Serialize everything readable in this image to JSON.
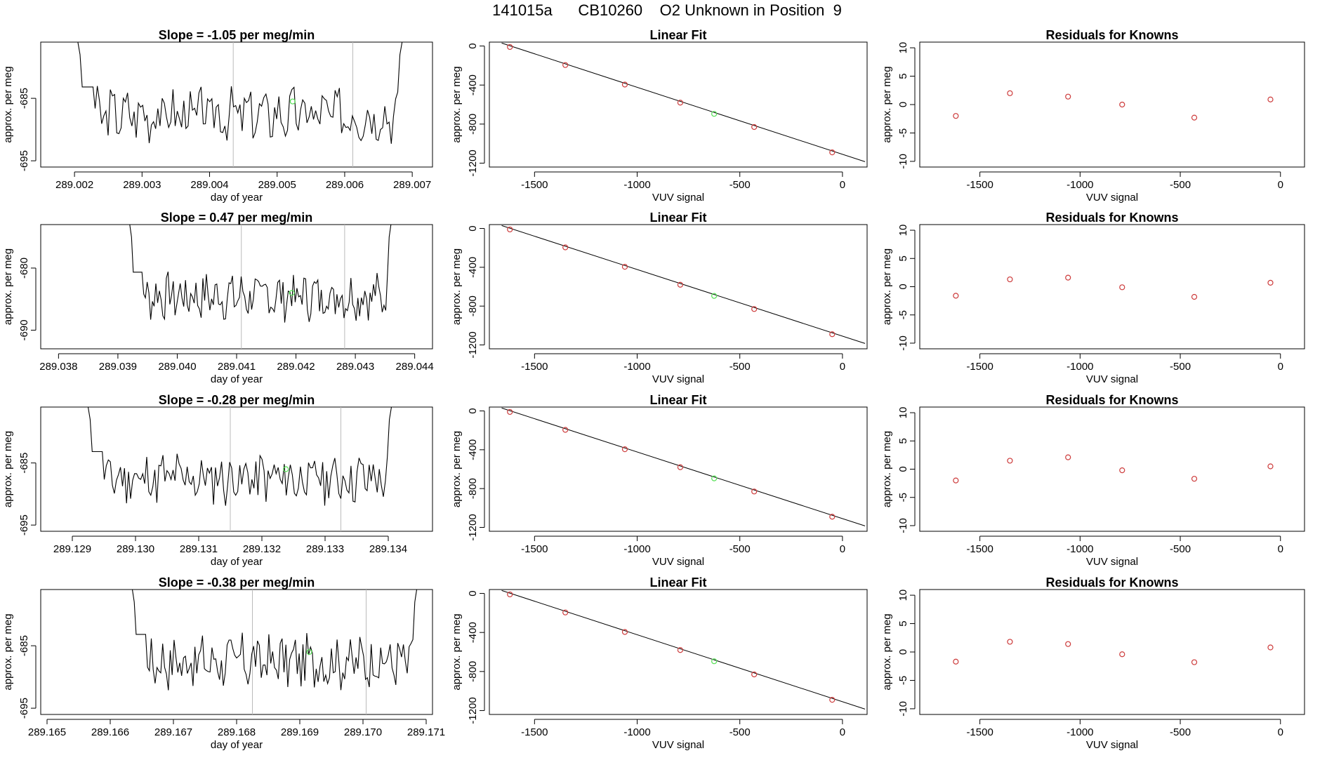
{
  "page": {
    "title": "141015a      CB10260    O2 Unknown in Position  9"
  },
  "colors": {
    "trace": "#000000",
    "fit_line": "#000000",
    "known_point": "#cd3b3b",
    "unknown_point": "#55e055",
    "cursor_line": "#bbbbbb",
    "axis": "#000000"
  },
  "chart_data": [
    {
      "type": "line",
      "panel": "trace-1",
      "title_prefix": "Slope =",
      "title_value": "-1.05",
      "title_suffix": "per meg/min",
      "xlabel": "day of year",
      "ylabel": "approx. per meg",
      "xlim": [
        289.0015,
        289.0073
      ],
      "ylim": [
        -696,
        -676
      ],
      "xticks": [
        "289.002",
        "289.003",
        "289.004",
        "289.005",
        "289.006",
        "289.007"
      ],
      "xtick_values": [
        289.002,
        289.003,
        289.004,
        289.005,
        289.006,
        289.007
      ],
      "yticks": [
        "-685",
        "-695"
      ],
      "ytick_values": [
        -685,
        -695
      ],
      "trace_start": 289.00205,
      "trace_end": 289.00685,
      "trace_base": -687.5,
      "trace_amp": 3.6,
      "trace_seed": 3,
      "vlines": [
        289.00435,
        289.00612
      ],
      "unknown_point": {
        "x": 289.00523,
        "y": -685.5
      }
    },
    {
      "type": "scatter",
      "panel": "fit-1",
      "title": "Linear Fit",
      "xlabel": "VUV signal",
      "ylabel": "approx. per meg",
      "xlim": [
        -1720,
        120
      ],
      "ylim": [
        -1240,
        40
      ],
      "xticks": [
        "-1500",
        "-1000",
        "-500",
        "0"
      ],
      "xtick_values": [
        -1500,
        -1000,
        -500,
        0
      ],
      "yticks": [
        "0",
        "-400",
        "-800",
        "-1200"
      ],
      "ytick_values": [
        0,
        -400,
        -800,
        -1200
      ],
      "line": {
        "x": [
          -1660,
          110
        ],
        "y": [
          30,
          -1185
        ]
      },
      "knowns": {
        "x": [
          -1620,
          -1350,
          -1060,
          -790,
          -430,
          -50
        ],
        "y": [
          -10,
          -195,
          -395,
          -580,
          -830,
          -1090
        ]
      },
      "unknown": {
        "x": -625,
        "y": -695
      }
    },
    {
      "type": "scatter",
      "panel": "resid-1",
      "title": "Residuals for Knowns",
      "xlabel": "VUV signal",
      "ylabel": "approx. per meg",
      "xlim": [
        -1800,
        120
      ],
      "ylim": [
        -11,
        11
      ],
      "xticks": [
        "-1500",
        "-1000",
        "-500",
        "0"
      ],
      "xtick_values": [
        -1500,
        -1000,
        -500,
        0
      ],
      "yticks": [
        "10",
        "5",
        "0",
        "-5",
        "-10"
      ],
      "ytick_values": [
        10,
        5,
        0,
        -5,
        -10
      ],
      "x": [
        -1620,
        -1350,
        -1060,
        -790,
        -430,
        -50
      ],
      "y": [
        -2.0,
        2.0,
        1.4,
        0.0,
        -2.3,
        0.9
      ]
    },
    {
      "type": "line",
      "panel": "trace-2",
      "title_prefix": "Slope =",
      "title_value": "0.47",
      "title_suffix": "per meg/min",
      "xlabel": "day of year",
      "ylabel": "approx. per meg",
      "xlim": [
        289.0377,
        289.0443
      ],
      "ylim": [
        -693,
        -673
      ],
      "xticks": [
        "289.038",
        "289.039",
        "289.040",
        "289.041",
        "289.042",
        "289.043",
        "289.044"
      ],
      "xtick_values": [
        289.038,
        289.039,
        289.04,
        289.041,
        289.042,
        289.043,
        289.044
      ],
      "yticks": [
        "-680",
        "-690"
      ],
      "ytick_values": [
        -680,
        -690
      ],
      "trace_start": 289.0392,
      "trace_end": 289.0436,
      "trace_base": -684.5,
      "trace_amp": 3.2,
      "trace_seed": 7,
      "vlines": [
        289.04108,
        289.04282
      ],
      "unknown_point": {
        "x": 289.04193,
        "y": -684.0
      }
    },
    {
      "type": "scatter",
      "panel": "fit-2",
      "title": "Linear Fit",
      "xlabel": "VUV signal",
      "ylabel": "approx. per meg",
      "xlim": [
        -1720,
        120
      ],
      "ylim": [
        -1240,
        40
      ],
      "xticks": [
        "-1500",
        "-1000",
        "-500",
        "0"
      ],
      "xtick_values": [
        -1500,
        -1000,
        -500,
        0
      ],
      "yticks": [
        "0",
        "-400",
        "-800",
        "-1200"
      ],
      "ytick_values": [
        0,
        -400,
        -800,
        -1200
      ],
      "line": {
        "x": [
          -1660,
          110
        ],
        "y": [
          30,
          -1185
        ]
      },
      "knowns": {
        "x": [
          -1620,
          -1350,
          -1060,
          -790,
          -430,
          -50
        ],
        "y": [
          -10,
          -195,
          -395,
          -580,
          -830,
          -1090
        ]
      },
      "unknown": {
        "x": -625,
        "y": -695
      }
    },
    {
      "type": "scatter",
      "panel": "resid-2",
      "title": "Residuals for Knowns",
      "xlabel": "VUV signal",
      "ylabel": "approx. per meg",
      "xlim": [
        -1800,
        120
      ],
      "ylim": [
        -11,
        11
      ],
      "xticks": [
        "-1500",
        "-1000",
        "-500",
        "0"
      ],
      "xtick_values": [
        -1500,
        -1000,
        -500,
        0
      ],
      "yticks": [
        "10",
        "5",
        "0",
        "-5",
        "-10"
      ],
      "ytick_values": [
        10,
        5,
        0,
        -5,
        -10
      ],
      "x": [
        -1620,
        -1350,
        -1060,
        -790,
        -430,
        -50
      ],
      "y": [
        -1.6,
        1.3,
        1.6,
        -0.1,
        -1.8,
        0.7
      ]
    },
    {
      "type": "line",
      "panel": "trace-3",
      "title_prefix": "Slope =",
      "title_value": "-0.28",
      "title_suffix": "per meg/min",
      "xlabel": "day of year",
      "ylabel": "approx. per meg",
      "xlim": [
        289.1285,
        289.1347
      ],
      "ylim": [
        -696,
        -676
      ],
      "xticks": [
        "289.129",
        "289.130",
        "289.131",
        "289.132",
        "289.133",
        "289.134"
      ],
      "xtick_values": [
        289.129,
        289.13,
        289.131,
        289.132,
        289.133,
        289.134
      ],
      "yticks": [
        "-685",
        "-695"
      ],
      "ytick_values": [
        -685,
        -695
      ],
      "trace_start": 289.12925,
      "trace_end": 289.13405,
      "trace_base": -687.5,
      "trace_amp": 3.6,
      "trace_seed": 11,
      "vlines": [
        289.1315,
        289.13325
      ],
      "unknown_point": {
        "x": 289.13238,
        "y": -686.0
      }
    },
    {
      "type": "scatter",
      "panel": "fit-3",
      "title": "Linear Fit",
      "xlabel": "VUV signal",
      "ylabel": "approx. per meg",
      "xlim": [
        -1720,
        120
      ],
      "ylim": [
        -1240,
        40
      ],
      "xticks": [
        "-1500",
        "-1000",
        "-500",
        "0"
      ],
      "xtick_values": [
        -1500,
        -1000,
        -500,
        0
      ],
      "yticks": [
        "0",
        "-400",
        "-800",
        "-1200"
      ],
      "ytick_values": [
        0,
        -400,
        -800,
        -1200
      ],
      "line": {
        "x": [
          -1660,
          110
        ],
        "y": [
          30,
          -1185
        ]
      },
      "knowns": {
        "x": [
          -1620,
          -1350,
          -1060,
          -790,
          -430,
          -50
        ],
        "y": [
          -10,
          -195,
          -395,
          -580,
          -830,
          -1090
        ]
      },
      "unknown": {
        "x": -625,
        "y": -695
      }
    },
    {
      "type": "scatter",
      "panel": "resid-3",
      "title": "Residuals for Knowns",
      "xlabel": "VUV signal",
      "ylabel": "approx. per meg",
      "xlim": [
        -1800,
        120
      ],
      "ylim": [
        -11,
        11
      ],
      "xticks": [
        "-1500",
        "-1000",
        "-500",
        "0"
      ],
      "xtick_values": [
        -1500,
        -1000,
        -500,
        0
      ],
      "yticks": [
        "10",
        "5",
        "0",
        "-5",
        "-10"
      ],
      "ytick_values": [
        10,
        5,
        0,
        -5,
        -10
      ],
      "x": [
        -1620,
        -1350,
        -1060,
        -790,
        -430,
        -50
      ],
      "y": [
        -2.0,
        1.5,
        2.1,
        -0.2,
        -1.7,
        0.5
      ]
    },
    {
      "type": "line",
      "panel": "trace-4",
      "title_prefix": "Slope =",
      "title_value": "-0.38",
      "title_suffix": "per meg/min",
      "xlabel": "day of year",
      "ylabel": "approx. per meg",
      "xlim": [
        289.1649,
        289.1711
      ],
      "ylim": [
        -696,
        -676
      ],
      "xticks": [
        "289.165",
        "289.166",
        "289.167",
        "289.168",
        "289.169",
        "289.170",
        "289.171"
      ],
      "xtick_values": [
        289.165,
        289.166,
        289.167,
        289.168,
        289.169,
        289.17,
        289.171
      ],
      "yticks": [
        "-685",
        "-695"
      ],
      "ytick_values": [
        -685,
        -695
      ],
      "trace_start": 289.16635,
      "trace_end": 289.17085,
      "trace_base": -687.5,
      "trace_amp": 3.6,
      "trace_seed": 17,
      "vlines": [
        289.16825,
        289.17005
      ],
      "unknown_point": {
        "x": 289.16915,
        "y": -686.0
      }
    },
    {
      "type": "scatter",
      "panel": "fit-4",
      "title": "Linear Fit",
      "xlabel": "VUV signal",
      "ylabel": "approx. per meg",
      "xlim": [
        -1720,
        120
      ],
      "ylim": [
        -1240,
        40
      ],
      "xticks": [
        "-1500",
        "-1000",
        "-500",
        "0"
      ],
      "xtick_values": [
        -1500,
        -1000,
        -500,
        0
      ],
      "yticks": [
        "0",
        "-400",
        "-800",
        "-1200"
      ],
      "ytick_values": [
        0,
        -400,
        -800,
        -1200
      ],
      "line": {
        "x": [
          -1660,
          110
        ],
        "y": [
          30,
          -1185
        ]
      },
      "knowns": {
        "x": [
          -1620,
          -1350,
          -1060,
          -790,
          -430,
          -50
        ],
        "y": [
          -10,
          -195,
          -395,
          -580,
          -830,
          -1090
        ]
      },
      "unknown": {
        "x": -625,
        "y": -695
      }
    },
    {
      "type": "scatter",
      "panel": "resid-4",
      "title": "Residuals for Knowns",
      "xlabel": "VUV signal",
      "ylabel": "approx. per meg",
      "xlim": [
        -1800,
        120
      ],
      "ylim": [
        -11,
        11
      ],
      "xticks": [
        "-1500",
        "-1000",
        "-500",
        "0"
      ],
      "xtick_values": [
        -1500,
        -1000,
        -500,
        0
      ],
      "yticks": [
        "10",
        "5",
        "0",
        "-5",
        "-10"
      ],
      "ytick_values": [
        10,
        5,
        0,
        -5,
        -10
      ],
      "x": [
        -1620,
        -1350,
        -1060,
        -790,
        -430,
        -50
      ],
      "y": [
        -1.7,
        1.8,
        1.4,
        -0.4,
        -1.8,
        0.8
      ]
    }
  ]
}
